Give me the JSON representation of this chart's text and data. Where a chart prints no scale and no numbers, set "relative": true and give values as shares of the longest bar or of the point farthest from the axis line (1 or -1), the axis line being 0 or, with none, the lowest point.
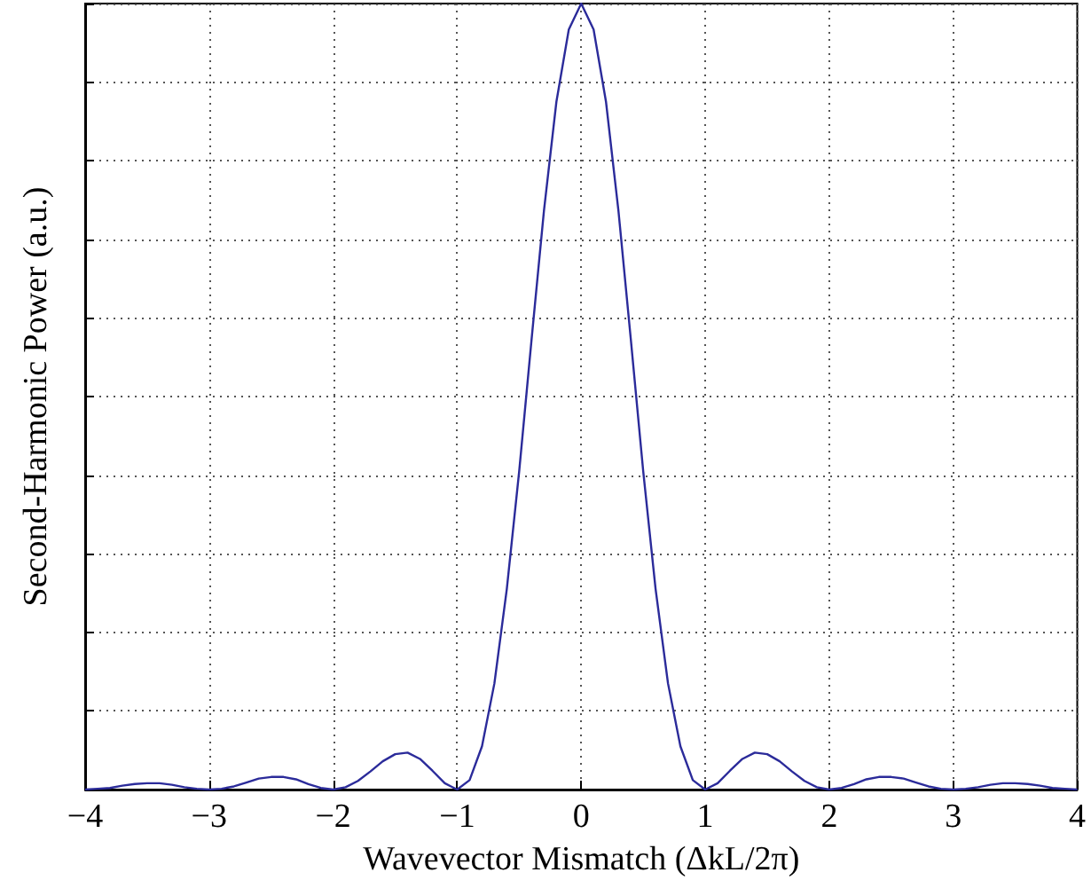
{
  "chart_data": {
    "type": "line",
    "xlabel": "Wavevector Mismatch (ΔkL/2π)",
    "ylabel": "Second-Harmonic Power (a.u.)",
    "relative": true,
    "grid": true,
    "marker": "none",
    "line_style": "solid",
    "xlim": [
      -4,
      4
    ],
    "xticks": [
      {
        "value": -4,
        "label": "−4"
      },
      {
        "value": -3,
        "label": "−3"
      },
      {
        "value": -2,
        "label": "−2"
      },
      {
        "value": -1,
        "label": "−1"
      },
      0,
      1,
      2,
      3,
      4
    ],
    "x": [
      -4,
      -3.9,
      -3.8,
      -3.7,
      -3.6,
      -3.5,
      -3.4,
      -3.3,
      -3.2,
      -3.1,
      -3,
      -2.9,
      -2.8,
      -2.7,
      -2.6,
      -2.5,
      -2.4,
      -2.3,
      -2.2,
      -2.1,
      -2,
      -1.9,
      -1.8,
      -1.7,
      -1.6,
      -1.5,
      -1.4,
      -1.3,
      -1.2,
      -1.1,
      -1,
      -0.9,
      -0.8,
      -0.7,
      -0.6,
      -0.5,
      -0.4,
      -0.3,
      -0.2,
      -0.1,
      0,
      0.1,
      0.2,
      0.3,
      0.4,
      0.5,
      0.6,
      0.7,
      0.8,
      0.9,
      1,
      1.1,
      1.2,
      1.3,
      1.4,
      1.5,
      1.6,
      1.7,
      1.8,
      1.9,
      2,
      2.1,
      2.2,
      2.3,
      2.4,
      2.5,
      2.6,
      2.7,
      2.8,
      2.9,
      3,
      3.1,
      3.2,
      3.3,
      3.4,
      3.5,
      3.6,
      3.7,
      3.8,
      3.9,
      4
    ],
    "series": [
      {
        "color": "#2b2b9a",
        "values": [
          0,
          0.001,
          0.002,
          0.005,
          0.007,
          0.008,
          0.008,
          0.006,
          0.003,
          0.001,
          0,
          0.001,
          0.004,
          0.009,
          0.014,
          0.016,
          0.016,
          0.013,
          0.007,
          0.002,
          0,
          0.003,
          0.011,
          0.023,
          0.036,
          0.045,
          0.047,
          0.039,
          0.024,
          0.008,
          0,
          0.012,
          0.055,
          0.135,
          0.255,
          0.405,
          0.573,
          0.737,
          0.875,
          0.967,
          1,
          0.967,
          0.875,
          0.737,
          0.573,
          0.405,
          0.255,
          0.135,
          0.055,
          0.012,
          0,
          0.008,
          0.024,
          0.039,
          0.047,
          0.045,
          0.036,
          0.023,
          0.011,
          0.003,
          0,
          0.002,
          0.007,
          0.013,
          0.016,
          0.016,
          0.014,
          0.009,
          0.004,
          0.001,
          0,
          0.001,
          0.003,
          0.006,
          0.008,
          0.008,
          0.007,
          0.005,
          0.002,
          0.001,
          0
        ]
      }
    ]
  }
}
